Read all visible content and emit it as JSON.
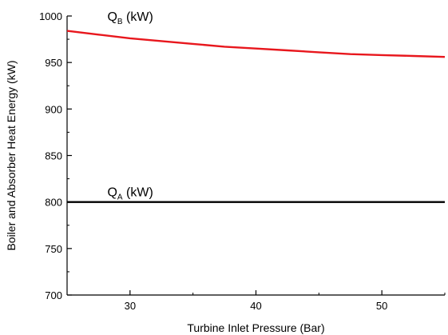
{
  "chart_data": {
    "type": "line",
    "xlabel": "Turbine Inlet Pressure (Bar)",
    "ylabel": "Boiler and Absorber Heat Energy (kW)",
    "xlim": [
      25,
      55
    ],
    "ylim": [
      700,
      1000
    ],
    "x_ticks": [
      30,
      40,
      50
    ],
    "y_ticks": [
      700,
      750,
      800,
      850,
      900,
      950,
      1000
    ],
    "grid": false,
    "series": [
      {
        "label_main": "Q",
        "label_sub": "B",
        "label_unit": " (kW)",
        "color": "#e8171d",
        "x": [
          25,
          27.5,
          30,
          32.5,
          35,
          37.5,
          40,
          42.5,
          45,
          47.5,
          50,
          52.5,
          55
        ],
        "y": [
          984,
          980,
          976,
          973,
          970,
          967,
          965,
          963,
          961,
          959,
          958,
          957,
          956
        ]
      },
      {
        "label_main": "Q",
        "label_sub": "A",
        "label_unit": " (kW)",
        "color": "#000000",
        "x": [
          25,
          55
        ],
        "y": [
          800,
          800
        ]
      }
    ]
  }
}
